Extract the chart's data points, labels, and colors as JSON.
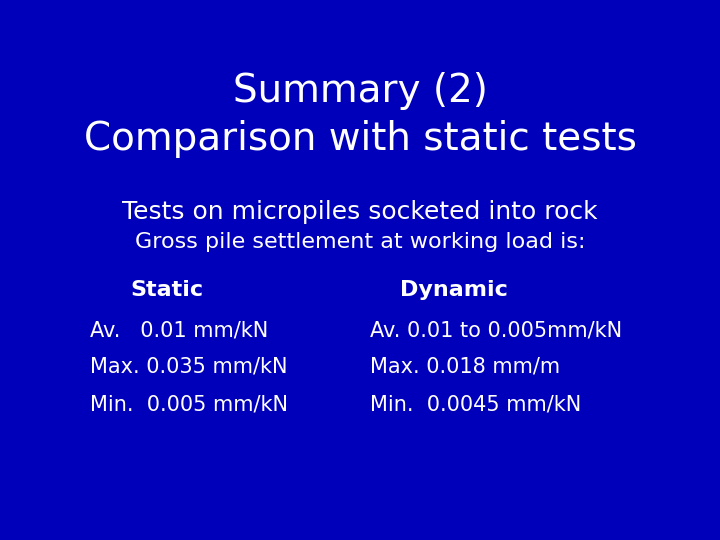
{
  "background_color": "#0000BB",
  "title_line1": "Summary (2)",
  "title_line2": "Comparison with static tests",
  "subtitle1": "Tests on micropiles socketed into rock",
  "subtitle2": "Gross pile settlement at working load is:",
  "col1_header": "Static",
  "col2_header": "Dynamic",
  "col1_rows": [
    "Av.   0.01 mm/kN",
    "Max. 0.035 mm/kN",
    "Min.  0.005 mm/kN"
  ],
  "col2_rows": [
    "Av. 0.01 to 0.005mm/kN",
    "Max. 0.018 mm/m",
    "Min.  0.0045 mm/kN"
  ],
  "text_color": "#FFFFFF",
  "title1_fontsize": 28,
  "title2_fontsize": 28,
  "subtitle1_fontsize": 18,
  "subtitle2_fontsize": 16,
  "header_fontsize": 16,
  "body_fontsize": 15
}
